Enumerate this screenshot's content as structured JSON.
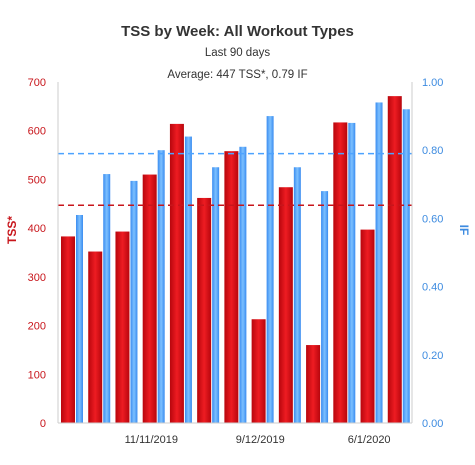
{
  "chart_data": {
    "type": "bar",
    "title": "TSS by Week: All Workout Types",
    "subtitle": "Last 90 days",
    "summary": "Average: 447 TSS*, 0.79 IF",
    "ylabel_left": "TSS*",
    "ylabel_right": "IF",
    "ylim_left": [
      0,
      700
    ],
    "ylim_right": [
      0,
      1.0
    ],
    "yticks_left": [
      "0",
      "100",
      "200",
      "300",
      "400",
      "500",
      "600",
      "700"
    ],
    "yticks_right": [
      "0.00",
      "0.20",
      "0.40",
      "0.60",
      "0.80",
      "1.00"
    ],
    "x_tick_labels": [
      "11/11/2019",
      "9/12/2019",
      "6/1/2020"
    ],
    "series": [
      {
        "name": "TSS*",
        "axis": "left",
        "color": "#d8111b",
        "values": [
          383,
          352,
          393,
          510,
          614,
          462,
          558,
          213,
          484,
          160,
          617,
          397,
          671
        ]
      },
      {
        "name": "IF",
        "axis": "right",
        "color": "#4da3ff",
        "values": [
          0.61,
          0.73,
          0.71,
          0.8,
          0.84,
          0.75,
          0.81,
          0.9,
          0.75,
          0.68,
          0.88,
          0.94,
          0.92
        ]
      }
    ],
    "averages": {
      "tss": 447,
      "if": 0.79
    },
    "grid": false
  }
}
